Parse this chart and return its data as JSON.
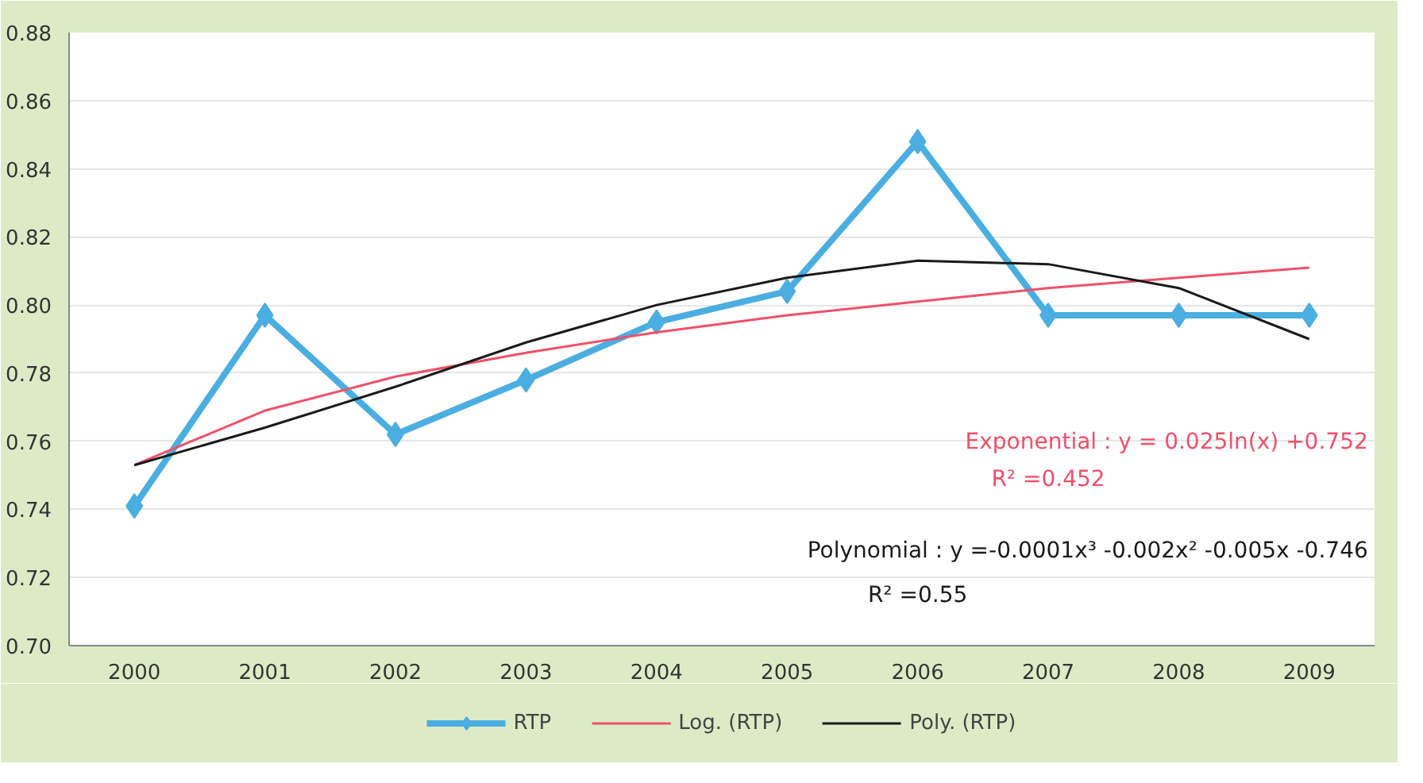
{
  "chart_data": {
    "type": "line",
    "categories": [
      "2000",
      "2001",
      "2002",
      "2003",
      "2004",
      "2005",
      "2006",
      "2007",
      "2008",
      "2009"
    ],
    "series": [
      {
        "name": "RTP",
        "color": "#4aaee0",
        "marker": "diamond",
        "values": [
          0.741,
          0.797,
          0.762,
          0.778,
          0.795,
          0.804,
          0.848,
          0.797,
          0.797,
          0.797
        ]
      },
      {
        "name": "Log. (RTP)",
        "color": "#f0506a",
        "marker": "none",
        "values": [
          0.753,
          0.769,
          0.779,
          0.786,
          0.792,
          0.797,
          0.801,
          0.805,
          0.808,
          0.811
        ]
      },
      {
        "name": "Poly. (RTP)",
        "color": "#1a1a1a",
        "marker": "none",
        "values": [
          0.753,
          0.764,
          0.776,
          0.789,
          0.8,
          0.808,
          0.813,
          0.812,
          0.805,
          0.79
        ]
      }
    ],
    "ylim": [
      0.7,
      0.88
    ],
    "yticks": [
      {
        "value": 0.7,
        "label": "0.70"
      },
      {
        "value": 0.72,
        "label": "0.72"
      },
      {
        "value": 0.74,
        "label": "0.74"
      },
      {
        "value": 0.76,
        "label": "0.76"
      },
      {
        "value": 0.78,
        "label": "0.78"
      },
      {
        "value": 0.8,
        "label": "0.80"
      },
      {
        "value": 0.82,
        "label": "0.82"
      },
      {
        "value": 0.84,
        "label": "0.84"
      },
      {
        "value": 0.86,
        "label": "0.86"
      },
      {
        "value": 0.88,
        "label": "0.88"
      }
    ],
    "grid": "y",
    "legend": "bottom",
    "line_style": "solid",
    "annotations": [
      "Exponential : y = 0.025ln(x) +0.752",
      "R² =0.452",
      "Polynomial : y =-0.0001x³ -0.002x² -0.005x -0.746",
      "R² =0.55"
    ]
  }
}
